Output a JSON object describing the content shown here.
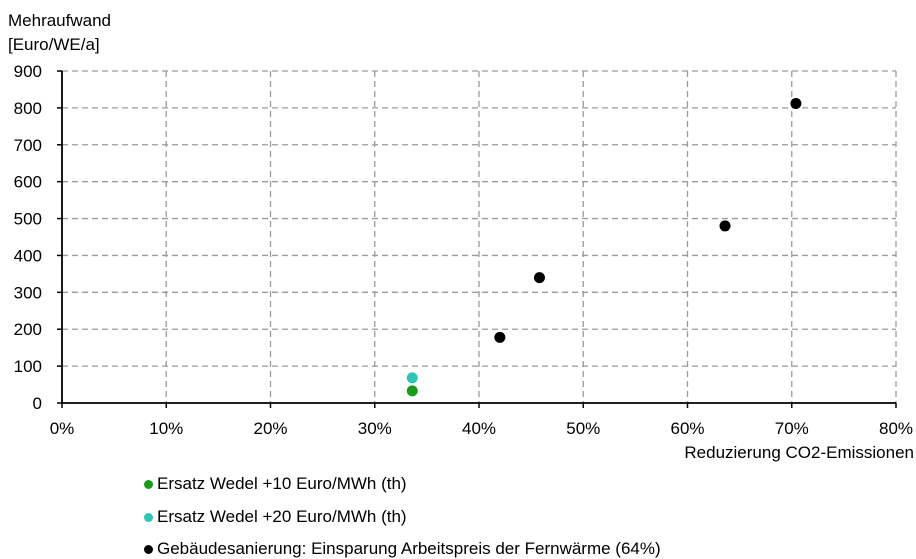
{
  "chart_data": {
    "type": "scatter",
    "ylabel_lines": [
      "Mehraufwand",
      "[Euro/WE/a]"
    ],
    "xlabel": "Reduzierung CO2-Emissionen",
    "xlim": [
      0,
      0.8
    ],
    "ylim": [
      0,
      900
    ],
    "x_ticks": [
      {
        "value": 0,
        "label": "0%"
      },
      {
        "value": 0.1,
        "label": "10%"
      },
      {
        "value": 0.2,
        "label": "20%"
      },
      {
        "value": 0.3,
        "label": "30%"
      },
      {
        "value": 0.4,
        "label": "40%"
      },
      {
        "value": 0.5,
        "label": "50%"
      },
      {
        "value": 0.6,
        "label": "60%"
      },
      {
        "value": 0.7,
        "label": "70%"
      },
      {
        "value": 0.8,
        "label": "80%"
      }
    ],
    "y_ticks": [
      {
        "value": 0,
        "label": "0"
      },
      {
        "value": 100,
        "label": "100"
      },
      {
        "value": 200,
        "label": "200"
      },
      {
        "value": 300,
        "label": "300"
      },
      {
        "value": 400,
        "label": "400"
      },
      {
        "value": 500,
        "label": "500"
      },
      {
        "value": 600,
        "label": "600"
      },
      {
        "value": 700,
        "label": "700"
      },
      {
        "value": 800,
        "label": "800"
      },
      {
        "value": 900,
        "label": "900"
      }
    ],
    "grid": true,
    "legend_position": "bottom",
    "series": [
      {
        "name": "Ersatz Wedel +10 Euro/MWh (th)",
        "color": "#1a9a1a",
        "points": [
          {
            "x": 0.336,
            "y": 33
          }
        ]
      },
      {
        "name": "Ersatz Wedel +20 Euro/MWh (th)",
        "color": "#2ec4b6",
        "points": [
          {
            "x": 0.336,
            "y": 68
          }
        ]
      },
      {
        "name": "Gebäudesanierung: Einsparung Arbeitspreis der Fernwärme (64%)",
        "color": "#000000",
        "points": [
          {
            "x": 0.42,
            "y": 178
          },
          {
            "x": 0.458,
            "y": 340
          },
          {
            "x": 0.636,
            "y": 480
          },
          {
            "x": 0.704,
            "y": 812
          }
        ]
      }
    ]
  }
}
